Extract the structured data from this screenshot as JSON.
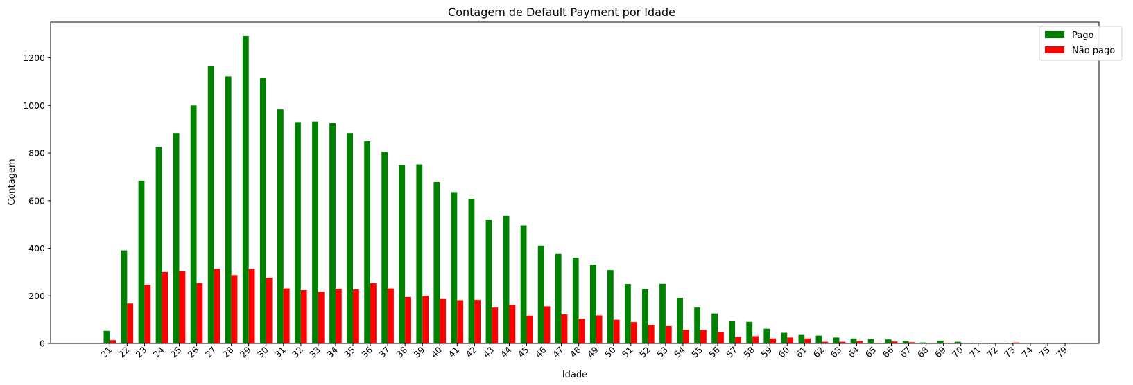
{
  "chart_data": {
    "type": "bar",
    "title": "Contagem de Default Payment por Idade",
    "xlabel": "Idade",
    "ylabel": "Contagem",
    "ylim": [
      0,
      1350
    ],
    "yticks": [
      0,
      200,
      400,
      600,
      800,
      1000,
      1200
    ],
    "legend_position": "top-right",
    "categories": [
      "21",
      "22",
      "23",
      "24",
      "25",
      "26",
      "27",
      "28",
      "29",
      "30",
      "31",
      "32",
      "33",
      "34",
      "35",
      "36",
      "37",
      "38",
      "39",
      "40",
      "41",
      "42",
      "43",
      "44",
      "45",
      "46",
      "47",
      "48",
      "49",
      "50",
      "51",
      "52",
      "53",
      "54",
      "55",
      "56",
      "57",
      "58",
      "59",
      "60",
      "61",
      "62",
      "63",
      "64",
      "65",
      "66",
      "67",
      "68",
      "69",
      "70",
      "71",
      "72",
      "73",
      "74",
      "75",
      "79"
    ],
    "series": [
      {
        "name": "Pago",
        "color": "#008000",
        "values": [
          53,
          391,
          684,
          825,
          884,
          1000,
          1164,
          1122,
          1292,
          1116,
          983,
          930,
          932,
          926,
          884,
          850,
          805,
          749,
          752,
          678,
          636,
          608,
          520,
          536,
          496,
          411,
          376,
          361,
          331,
          308,
          250,
          228,
          251,
          191,
          151,
          126,
          94,
          91,
          62,
          45,
          36,
          33,
          25,
          21,
          18,
          17,
          10,
          4,
          12,
          7,
          3,
          1,
          3,
          1,
          1,
          1
        ]
      },
      {
        "name": "Não pago",
        "color": "#ff0000",
        "values": [
          14,
          168,
          247,
          300,
          303,
          253,
          313,
          287,
          313,
          276,
          231,
          224,
          217,
          230,
          227,
          253,
          231,
          195,
          200,
          187,
          182,
          183,
          151,
          162,
          117,
          156,
          122,
          104,
          118,
          100,
          90,
          78,
          73,
          57,
          57,
          48,
          28,
          31,
          21,
          25,
          21,
          7,
          7,
          10,
          3,
          8,
          5,
          1,
          3,
          1,
          1,
          1,
          4,
          1,
          1,
          1
        ]
      }
    ]
  }
}
